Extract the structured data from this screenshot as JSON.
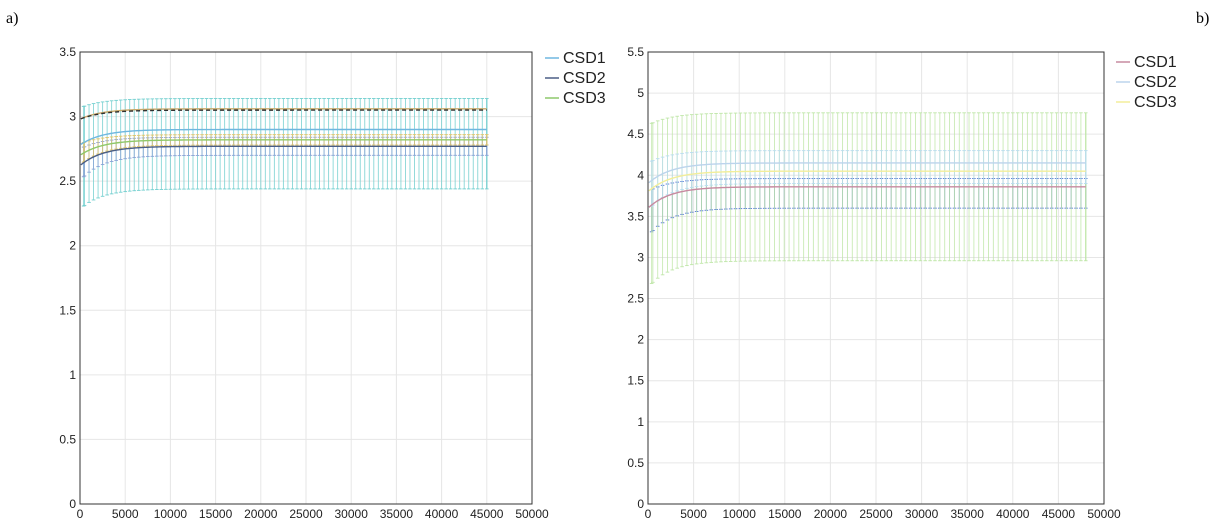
{
  "panels": {
    "a": {
      "label": "a)"
    },
    "b": {
      "label": "b)"
    }
  },
  "chart_data": [
    {
      "type": "line",
      "panel": "a)",
      "title": "",
      "xlabel": "",
      "ylabel": "",
      "xlim": [
        0,
        50000
      ],
      "ylim": [
        0,
        3.5
      ],
      "xticks": [
        0,
        5000,
        10000,
        15000,
        20000,
        25000,
        30000,
        35000,
        40000,
        45000,
        50000
      ],
      "yticks": [
        0,
        0.5,
        1,
        1.5,
        2,
        2.5,
        3,
        3.5
      ],
      "ytick_labels": [
        "0",
        "0.5",
        "1",
        "1.5",
        "2",
        "2.5",
        "3",
        "3.5"
      ],
      "grid": true,
      "legend_position": "right",
      "x_max": 45000,
      "series": [
        {
          "name": "CSD1",
          "color": "#6fb7e0",
          "start": 2.78,
          "plateau": 2.9,
          "err_lower": 2.44,
          "err_upper": 3.14,
          "err_color": "#72cfcf"
        },
        {
          "name": "CSD2",
          "color": "#4a5e86",
          "start": 2.62,
          "plateau": 2.77,
          "err_lower": 2.7,
          "err_upper": 2.84,
          "err_color": "#8aa2d6"
        },
        {
          "name": "CSD3",
          "color": "#8ec96a",
          "start": 2.7,
          "plateau": 2.82,
          "err_lower": 2.78,
          "err_upper": 2.86,
          "err_color": "#e0c46a"
        }
      ],
      "extra_lines": [
        {
          "color": "#c8a96b",
          "start": 2.98,
          "plateau": 3.06
        },
        {
          "color": "#303030",
          "start": 2.98,
          "plateau": 3.05,
          "dashed": true
        }
      ]
    },
    {
      "type": "line",
      "panel": "b)",
      "title": "",
      "xlabel": "",
      "ylabel": "",
      "xlim": [
        0,
        50000
      ],
      "ylim": [
        0,
        5.5
      ],
      "xticks": [
        0,
        5000,
        10000,
        15000,
        20000,
        25000,
        30000,
        35000,
        40000,
        45000,
        50000
      ],
      "yticks": [
        0,
        0.5,
        1,
        1.5,
        2,
        2.5,
        3,
        3.5,
        4,
        4.5,
        5,
        5.5
      ],
      "ytick_labels": [
        "0",
        "0.5",
        "1",
        "1.5",
        "2",
        "2.5",
        "3",
        "3.5",
        "4",
        "4.5",
        "5",
        "5.5"
      ],
      "grid": true,
      "legend_position": "right",
      "x_max": 48000,
      "series": [
        {
          "name": "CSD1",
          "color": "#c78aa0",
          "start": 3.6,
          "plateau": 3.86,
          "err_lower": 3.6,
          "err_upper": 3.96,
          "err_color": "#4f74d6"
        },
        {
          "name": "CSD2",
          "color": "#bcd4ec",
          "start": 3.9,
          "plateau": 4.15,
          "err_lower": 2.96,
          "err_upper": 4.76,
          "err_color": "#bfe6a8"
        },
        {
          "name": "CSD3",
          "color": "#f2ee9a",
          "start": 3.8,
          "plateau": 4.05,
          "err_lower": 3.9,
          "err_upper": 4.3,
          "err_color": "#b8dcef"
        }
      ]
    }
  ]
}
